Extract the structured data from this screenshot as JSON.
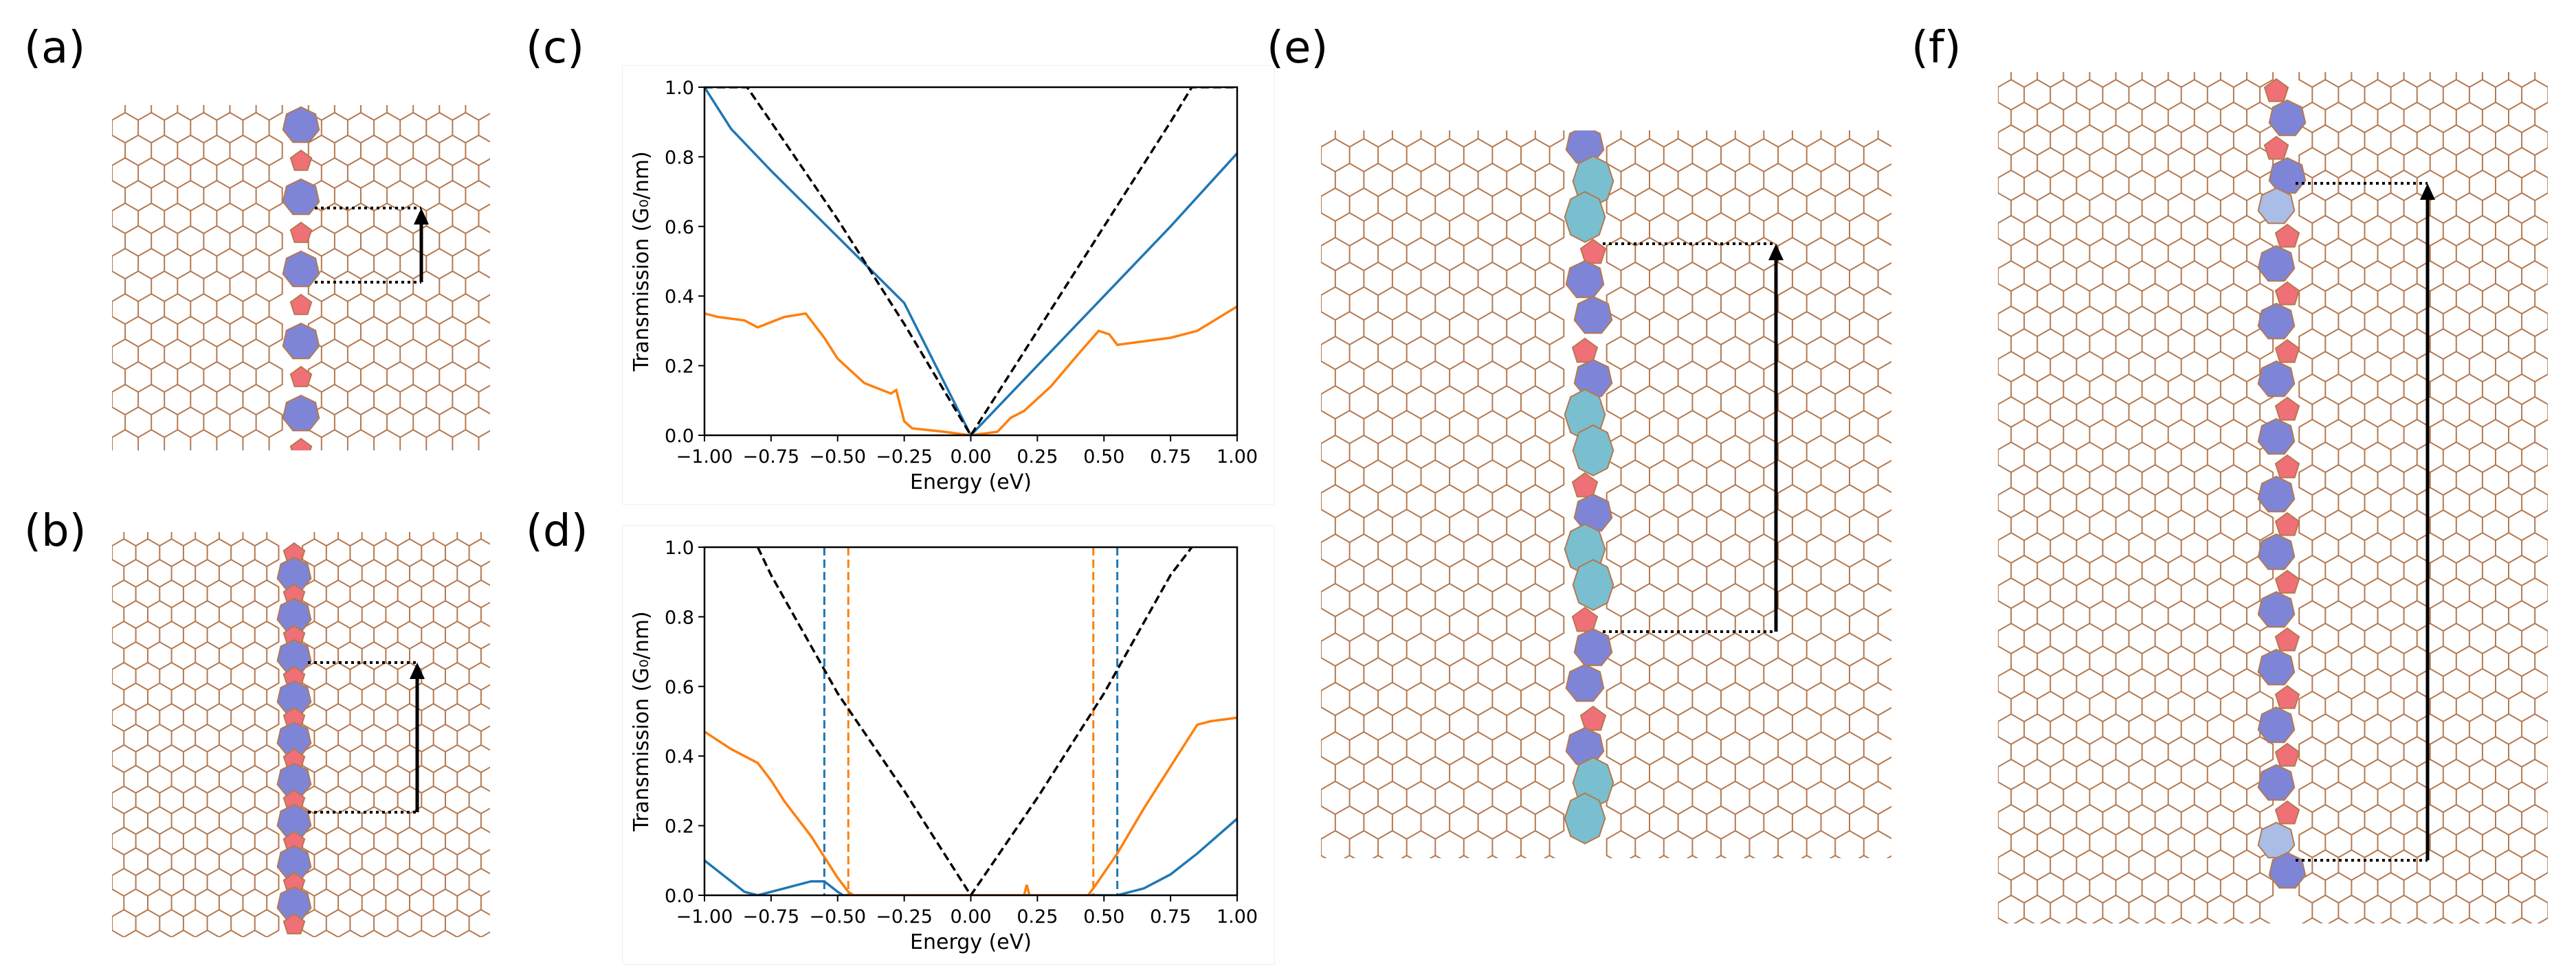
{
  "figure": {
    "panel_labels": {
      "a": "(a)",
      "b": "(b)",
      "c": "(c)",
      "d": "(d)",
      "e": "(e)",
      "f": "(f)"
    }
  },
  "colors": {
    "hex_line": "#b5794f",
    "heptagon": "#7f85d6",
    "pentagon": "#f07077",
    "octagon": "#79bfd0",
    "light_heptagon": "#a9bde6",
    "blue_series": "#1f77b4",
    "orange_series": "#ff7f0e",
    "black_series": "#000000"
  },
  "lattice_panels": {
    "a": {
      "defect_sequence": [
        "heptagon",
        "pentagon",
        "heptagon",
        "pentagon",
        "heptagon",
        "pentagon",
        "heptagon",
        "pentagon",
        "heptagon",
        "pentagon"
      ]
    },
    "b": {
      "defect_sequence": [
        "pentagon",
        "heptagon",
        "pentagon",
        "heptagon",
        "pentagon",
        "heptagon",
        "pentagon",
        "heptagon",
        "pentagon",
        "heptagon",
        "pentagon",
        "heptagon",
        "pentagon",
        "heptagon",
        "pentagon",
        "heptagon",
        "pentagon",
        "heptagon",
        "pentagon"
      ]
    },
    "e": {
      "defect_sequence": [
        "heptagon",
        "octagon",
        "octagon",
        "pentagon",
        "heptagon",
        "heptagon",
        "pentagon",
        "heptagon",
        "octagon",
        "octagon",
        "pentagon",
        "heptagon",
        "octagon",
        "octagon",
        "pentagon",
        "heptagon",
        "heptagon",
        "pentagon",
        "heptagon",
        "octagon",
        "octagon"
      ]
    },
    "f": {
      "defect_sequence": [
        "pentagon",
        "heptagon",
        "pentagon",
        "heptagon",
        "light_heptagon",
        "pentagon",
        "heptagon",
        "pentagon",
        "heptagon",
        "pentagon",
        "heptagon",
        "pentagon",
        "heptagon",
        "pentagon",
        "heptagon",
        "pentagon",
        "heptagon",
        "pentagon",
        "heptagon",
        "pentagon",
        "heptagon",
        "pentagon",
        "heptagon",
        "pentagon",
        "heptagon",
        "pentagon",
        "light_heptagon",
        "heptagon"
      ]
    }
  },
  "chart_data": [
    {
      "id": "c",
      "type": "line",
      "xlabel": "Energy (eV)",
      "ylabel": "Transmission (G₀/nm)",
      "xlim": [
        -1.0,
        1.0
      ],
      "ylim": [
        0.0,
        1.0
      ],
      "xticks": [
        "−1.00",
        "−0.75",
        "−0.50",
        "−0.25",
        "0.00",
        "0.25",
        "0.50",
        "0.75",
        "1.00"
      ],
      "yticks": [
        "0.0",
        "0.2",
        "0.4",
        "0.6",
        "0.8",
        "1.0"
      ],
      "series": [
        {
          "name": "black",
          "color": "#000000",
          "dash": "dashed",
          "x": [
            -1.0,
            -0.84,
            -0.75,
            -0.5,
            -0.25,
            0.0,
            0.25,
            0.5,
            0.75,
            0.83,
            1.0
          ],
          "y": [
            1.0,
            1.0,
            0.9,
            0.62,
            0.32,
            0.0,
            0.3,
            0.6,
            0.9,
            1.0,
            1.0
          ]
        },
        {
          "name": "blue",
          "color": "#1f77b4",
          "dash": "solid",
          "x": [
            -1.0,
            -0.9,
            -0.75,
            -0.5,
            -0.25,
            0.0,
            0.25,
            0.5,
            0.75,
            1.0
          ],
          "y": [
            1.0,
            0.88,
            0.76,
            0.57,
            0.38,
            0.0,
            0.2,
            0.4,
            0.6,
            0.81
          ]
        },
        {
          "name": "orange",
          "color": "#ff7f0e",
          "dash": "solid",
          "x": [
            -1.0,
            -0.95,
            -0.85,
            -0.8,
            -0.7,
            -0.62,
            -0.55,
            -0.5,
            -0.4,
            -0.3,
            -0.28,
            -0.25,
            -0.22,
            -0.1,
            0.0,
            0.1,
            0.15,
            0.2,
            0.3,
            0.4,
            0.48,
            0.52,
            0.55,
            0.65,
            0.75,
            0.85,
            1.0
          ],
          "y": [
            0.35,
            0.34,
            0.33,
            0.31,
            0.34,
            0.35,
            0.28,
            0.22,
            0.15,
            0.12,
            0.13,
            0.04,
            0.02,
            0.01,
            0.0,
            0.01,
            0.05,
            0.07,
            0.14,
            0.23,
            0.3,
            0.29,
            0.26,
            0.27,
            0.28,
            0.3,
            0.37
          ]
        }
      ]
    },
    {
      "id": "d",
      "type": "line",
      "xlabel": "Energy (eV)",
      "ylabel": "Transmission (G₀/nm)",
      "xlim": [
        -1.0,
        1.0
      ],
      "ylim": [
        0.0,
        1.0
      ],
      "xticks": [
        "−1.00",
        "−0.75",
        "−0.50",
        "−0.25",
        "0.00",
        "0.25",
        "0.50",
        "0.75",
        "1.00"
      ],
      "yticks": [
        "0.0",
        "0.2",
        "0.4",
        "0.6",
        "0.8",
        "1.0"
      ],
      "vlines": [
        {
          "x": -0.55,
          "color": "#1f77b4"
        },
        {
          "x": -0.46,
          "color": "#ff7f0e"
        },
        {
          "x": 0.46,
          "color": "#ff7f0e"
        },
        {
          "x": 0.55,
          "color": "#1f77b4"
        }
      ],
      "series": [
        {
          "name": "black",
          "color": "#000000",
          "dash": "dashed",
          "x": [
            -0.8,
            -0.75,
            -0.5,
            -0.25,
            0.0,
            0.25,
            0.5,
            0.75,
            0.83
          ],
          "y": [
            1.0,
            0.92,
            0.58,
            0.3,
            0.0,
            0.28,
            0.58,
            0.92,
            1.0
          ]
        },
        {
          "name": "blue",
          "color": "#1f77b4",
          "dash": "solid",
          "x": [
            -1.0,
            -0.9,
            -0.85,
            -0.8,
            -0.7,
            -0.6,
            -0.55,
            -0.5,
            -0.48,
            0.5,
            0.55,
            0.65,
            0.75,
            0.85,
            1.0
          ],
          "y": [
            0.1,
            0.04,
            0.01,
            0.0,
            0.02,
            0.04,
            0.04,
            0.01,
            0.0,
            0.0,
            0.0,
            0.02,
            0.06,
            0.12,
            0.22
          ]
        },
        {
          "name": "orange",
          "color": "#ff7f0e",
          "dash": "solid",
          "x": [
            -1.0,
            -0.9,
            -0.8,
            -0.75,
            -0.7,
            -0.6,
            -0.5,
            -0.46,
            -0.44,
            0.2,
            0.21,
            0.22,
            0.44,
            0.46,
            0.55,
            0.65,
            0.75,
            0.85,
            0.9,
            1.0
          ],
          "y": [
            0.47,
            0.42,
            0.38,
            0.33,
            0.27,
            0.17,
            0.05,
            0.01,
            0.0,
            0.0,
            0.03,
            0.0,
            0.0,
            0.02,
            0.12,
            0.25,
            0.37,
            0.49,
            0.5,
            0.51
          ]
        }
      ]
    }
  ]
}
